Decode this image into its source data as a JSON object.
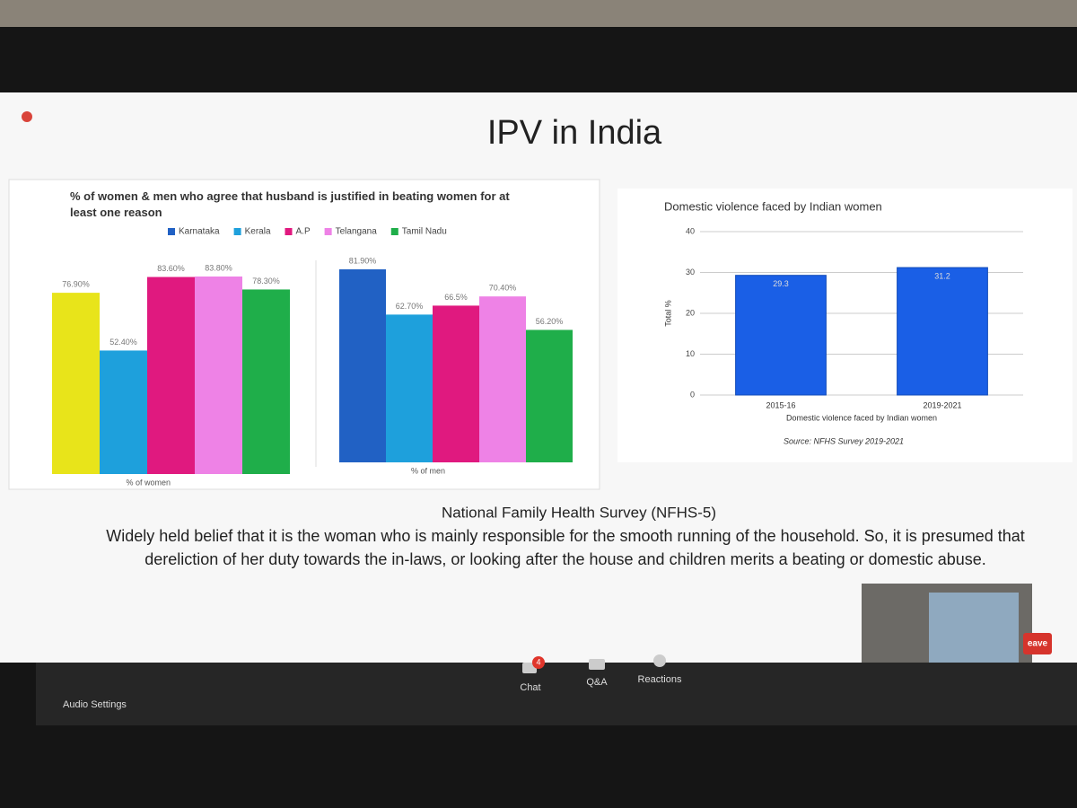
{
  "slide": {
    "title": "IPV in India",
    "charts": [
      {
        "type": "bar",
        "title": "% of women & men who agree that husband is justified in beating women for at least one reason",
        "legend": [
          {
            "name": "Karnataka",
            "color": "#2161c4"
          },
          {
            "name": "Kerala",
            "color": "#1ea0dc"
          },
          {
            "name": "A.P",
            "color": "#e0197f"
          },
          {
            "name": "Telangana",
            "color": "#ee82e6"
          },
          {
            "name": "Tamil Nadu",
            "color": "#1fae4a"
          }
        ],
        "panels": [
          {
            "label": "% of women",
            "colors": [
              "#e8e41a",
              "#1ea0dc",
              "#e0197f",
              "#ee82e6",
              "#1fae4a"
            ],
            "values": [
              76.9,
              52.4,
              83.6,
              83.8,
              78.3
            ],
            "value_labels": [
              "76.90%",
              "52.40%",
              "83.60%",
              "83.80%",
              "78.30%"
            ]
          },
          {
            "label": "% of men",
            "colors": [
              "#2161c4",
              "#1ea0dc",
              "#e0197f",
              "#ee82e6",
              "#1fae4a"
            ],
            "values": [
              81.9,
              62.7,
              66.5,
              70.4,
              56.2
            ],
            "value_labels": [
              "81.90%",
              "62.70%",
              "66.5%",
              "70.40%",
              "56.20%"
            ]
          }
        ]
      },
      {
        "type": "bar",
        "title": "Domestic violence faced by Indian women",
        "categories": [
          "2015-16",
          "2019-2021"
        ],
        "values": [
          29.3,
          31.2
        ],
        "color": "#1a5fe6",
        "ylabel": "Total %",
        "xlabel": "Domestic violence faced by Indian women",
        "ylim": [
          0,
          40
        ],
        "yticks": [
          0,
          10,
          20,
          30,
          40
        ],
        "grid": true,
        "source": "Source: NFHS Survey 2019-2021"
      }
    ],
    "subtitle": "National Family Health Survey (NFHS-5)",
    "body": "Widely held belief that it is the woman who is mainly responsible for the smooth running of the household. So, it is presumed that dereliction of her duty towards the in-laws, or looking after the house and children merits a beating or domestic abuse."
  },
  "toolbar": {
    "audio_settings": "Audio Settings",
    "chat": "Chat",
    "chat_badge": 4,
    "qa": "Q&A",
    "reactions": "Reactions",
    "leave": "eave"
  }
}
